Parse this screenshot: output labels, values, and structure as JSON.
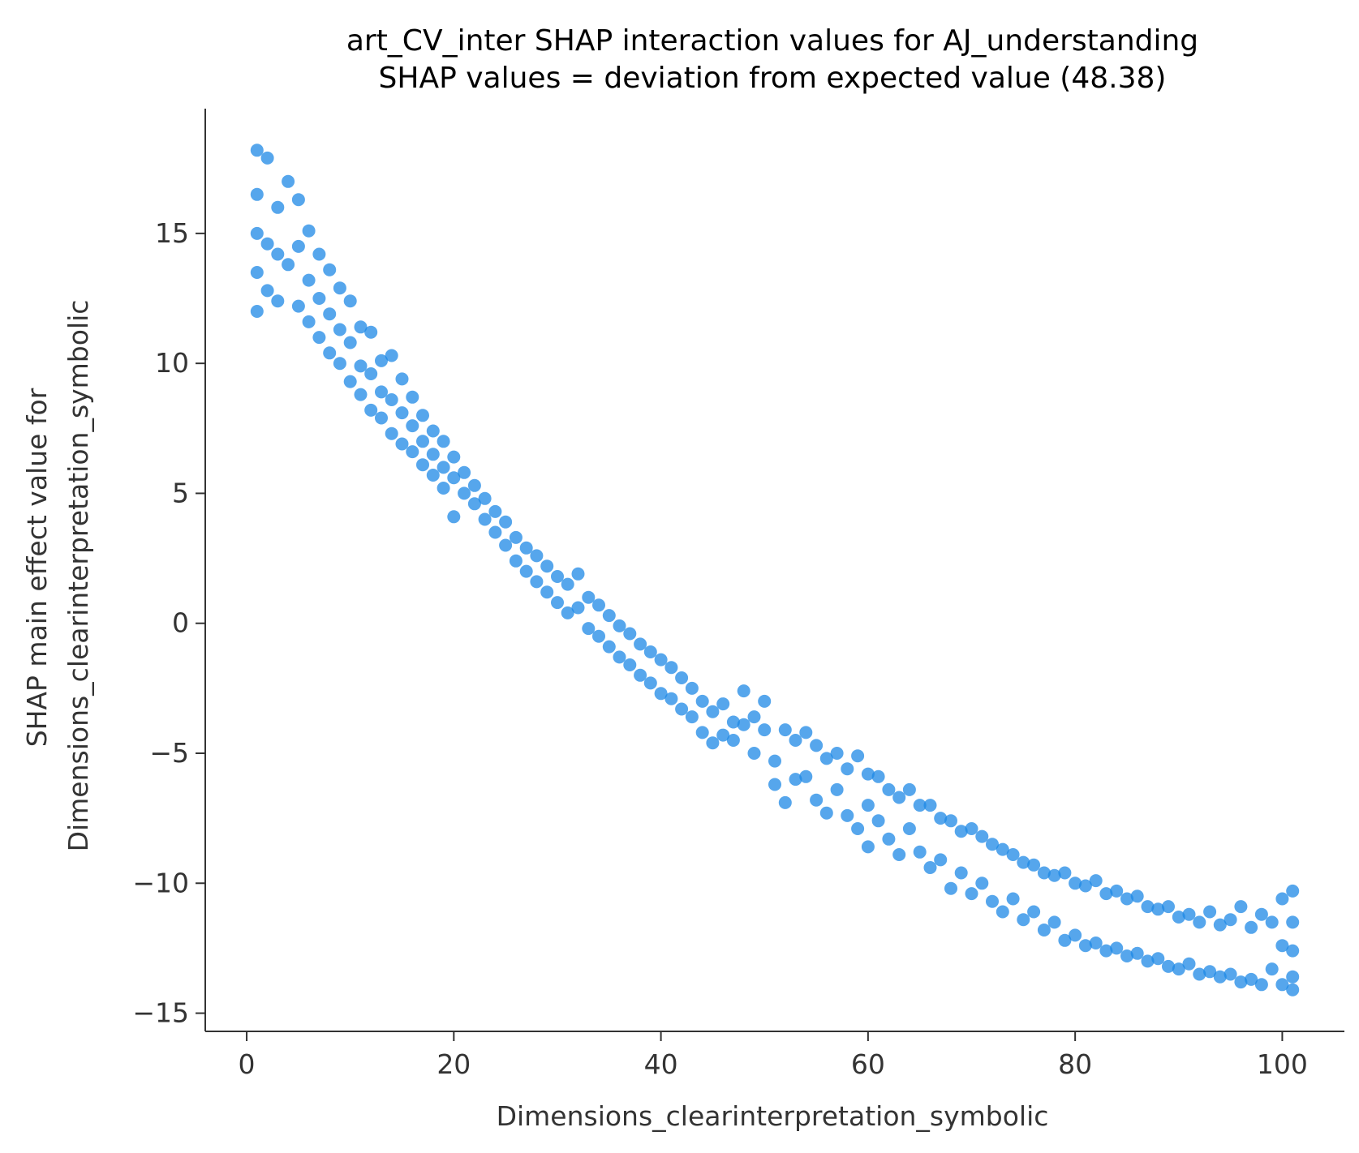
{
  "chart_data": {
    "type": "scatter",
    "title": "art_CV_inter SHAP interaction values for AJ_understanding",
    "subtitle": "SHAP values = deviation from expected value (48.38)",
    "xlabel": "Dimensions_clearinterpretation_symbolic",
    "ylabel_line1": "SHAP main effect value for",
    "ylabel_line2": "Dimensions_clearinterpretation_symbolic",
    "xlim": [
      -4,
      106
    ],
    "ylim": [
      -15.7,
      19.8
    ],
    "x_ticks": [
      0,
      20,
      40,
      60,
      80,
      100
    ],
    "x_tick_labels": [
      "0",
      "20",
      "40",
      "60",
      "80",
      "100"
    ],
    "y_ticks": [
      15,
      10,
      5,
      0,
      -5,
      -10,
      -15
    ],
    "y_tick_labels": [
      "15",
      "10",
      "5",
      "0",
      "−5",
      "−10",
      "−15"
    ],
    "grid": false,
    "marker_color": "#1E88E5",
    "series": [
      {
        "points": [
          [
            1,
            18.2
          ],
          [
            1,
            16.5
          ],
          [
            1,
            15.0
          ],
          [
            1,
            13.5
          ],
          [
            1,
            12.0
          ],
          [
            2,
            17.9
          ],
          [
            2,
            14.6
          ],
          [
            2,
            12.8
          ],
          [
            3,
            16.0
          ],
          [
            3,
            14.2
          ],
          [
            3,
            12.4
          ],
          [
            4,
            17.0
          ],
          [
            4,
            13.8
          ],
          [
            5,
            16.3
          ],
          [
            5,
            14.5
          ],
          [
            5,
            12.2
          ],
          [
            6,
            15.1
          ],
          [
            6,
            13.2
          ],
          [
            6,
            11.6
          ],
          [
            7,
            14.2
          ],
          [
            7,
            12.5
          ],
          [
            7,
            11.0
          ],
          [
            8,
            13.6
          ],
          [
            8,
            11.9
          ],
          [
            8,
            10.4
          ],
          [
            9,
            12.9
          ],
          [
            9,
            11.3
          ],
          [
            9,
            10.0
          ],
          [
            10,
            12.4
          ],
          [
            10,
            10.8
          ],
          [
            10,
            9.3
          ],
          [
            11,
            11.4
          ],
          [
            11,
            9.9
          ],
          [
            11,
            8.8
          ],
          [
            12,
            11.2
          ],
          [
            12,
            9.6
          ],
          [
            12,
            8.2
          ],
          [
            13,
            10.1
          ],
          [
            13,
            8.9
          ],
          [
            13,
            7.9
          ],
          [
            14,
            10.3
          ],
          [
            14,
            8.6
          ],
          [
            14,
            7.3
          ],
          [
            15,
            9.4
          ],
          [
            15,
            8.1
          ],
          [
            15,
            6.9
          ],
          [
            16,
            8.7
          ],
          [
            16,
            7.6
          ],
          [
            16,
            6.6
          ],
          [
            17,
            8.0
          ],
          [
            17,
            7.0
          ],
          [
            17,
            6.1
          ],
          [
            18,
            7.4
          ],
          [
            18,
            6.5
          ],
          [
            18,
            5.7
          ],
          [
            19,
            7.0
          ],
          [
            19,
            6.0
          ],
          [
            19,
            5.2
          ],
          [
            20,
            6.4
          ],
          [
            20,
            5.6
          ],
          [
            20,
            4.1
          ],
          [
            21,
            5.8
          ],
          [
            21,
            5.0
          ],
          [
            22,
            5.3
          ],
          [
            22,
            4.6
          ],
          [
            23,
            4.8
          ],
          [
            23,
            4.0
          ],
          [
            24,
            4.3
          ],
          [
            24,
            3.5
          ],
          [
            25,
            3.9
          ],
          [
            25,
            3.0
          ],
          [
            26,
            3.3
          ],
          [
            26,
            2.4
          ],
          [
            27,
            2.9
          ],
          [
            27,
            2.0
          ],
          [
            28,
            2.6
          ],
          [
            28,
            1.6
          ],
          [
            29,
            2.2
          ],
          [
            29,
            1.2
          ],
          [
            30,
            1.8
          ],
          [
            30,
            0.8
          ],
          [
            31,
            1.5
          ],
          [
            31,
            0.4
          ],
          [
            32,
            1.9
          ],
          [
            32,
            0.6
          ],
          [
            33,
            1.0
          ],
          [
            33,
            -0.2
          ],
          [
            34,
            0.7
          ],
          [
            34,
            -0.5
          ],
          [
            35,
            0.3
          ],
          [
            35,
            -0.9
          ],
          [
            36,
            -0.1
          ],
          [
            36,
            -1.3
          ],
          [
            37,
            -0.4
          ],
          [
            37,
            -1.6
          ],
          [
            38,
            -0.8
          ],
          [
            38,
            -2.0
          ],
          [
            39,
            -1.1
          ],
          [
            39,
            -2.3
          ],
          [
            40,
            -1.4
          ],
          [
            40,
            -2.7
          ],
          [
            41,
            -1.7
          ],
          [
            41,
            -2.9
          ],
          [
            42,
            -2.1
          ],
          [
            42,
            -3.3
          ],
          [
            43,
            -2.5
          ],
          [
            43,
            -3.6
          ],
          [
            44,
            -3.0
          ],
          [
            44,
            -4.2
          ],
          [
            45,
            -3.4
          ],
          [
            45,
            -4.6
          ],
          [
            46,
            -3.1
          ],
          [
            46,
            -4.3
          ],
          [
            47,
            -3.8
          ],
          [
            47,
            -4.5
          ],
          [
            48,
            -2.6
          ],
          [
            48,
            -3.9
          ],
          [
            49,
            -3.6
          ],
          [
            49,
            -5.0
          ],
          [
            50,
            -3.0
          ],
          [
            50,
            -4.1
          ],
          [
            51,
            -5.3
          ],
          [
            51,
            -6.2
          ],
          [
            52,
            -4.1
          ],
          [
            52,
            -6.9
          ],
          [
            53,
            -4.5
          ],
          [
            53,
            -6.0
          ],
          [
            54,
            -4.2
          ],
          [
            54,
            -5.9
          ],
          [
            55,
            -4.7
          ],
          [
            55,
            -6.8
          ],
          [
            56,
            -5.2
          ],
          [
            56,
            -7.3
          ],
          [
            57,
            -5.0
          ],
          [
            57,
            -6.4
          ],
          [
            58,
            -5.6
          ],
          [
            58,
            -7.4
          ],
          [
            59,
            -5.1
          ],
          [
            59,
            -7.9
          ],
          [
            60,
            -5.8
          ],
          [
            60,
            -7.0
          ],
          [
            60,
            -8.6
          ],
          [
            61,
            -5.9
          ],
          [
            61,
            -7.6
          ],
          [
            62,
            -6.4
          ],
          [
            62,
            -8.3
          ],
          [
            63,
            -6.7
          ],
          [
            63,
            -8.9
          ],
          [
            64,
            -6.4
          ],
          [
            64,
            -7.9
          ],
          [
            65,
            -7.0
          ],
          [
            65,
            -8.8
          ],
          [
            66,
            -7.0
          ],
          [
            66,
            -9.4
          ],
          [
            67,
            -7.5
          ],
          [
            67,
            -9.1
          ],
          [
            68,
            -7.6
          ],
          [
            68,
            -10.2
          ],
          [
            69,
            -8.0
          ],
          [
            69,
            -9.6
          ],
          [
            70,
            -7.9
          ],
          [
            70,
            -10.4
          ],
          [
            71,
            -8.2
          ],
          [
            71,
            -10.0
          ],
          [
            72,
            -8.5
          ],
          [
            72,
            -10.7
          ],
          [
            73,
            -8.7
          ],
          [
            73,
            -11.1
          ],
          [
            74,
            -8.9
          ],
          [
            74,
            -10.6
          ],
          [
            75,
            -9.2
          ],
          [
            75,
            -11.4
          ],
          [
            76,
            -9.3
          ],
          [
            76,
            -11.1
          ],
          [
            77,
            -9.6
          ],
          [
            77,
            -11.8
          ],
          [
            78,
            -9.7
          ],
          [
            78,
            -11.5
          ],
          [
            79,
            -9.6
          ],
          [
            79,
            -12.2
          ],
          [
            80,
            -10.0
          ],
          [
            80,
            -12.0
          ],
          [
            81,
            -10.1
          ],
          [
            81,
            -12.4
          ],
          [
            82,
            -9.9
          ],
          [
            82,
            -12.3
          ],
          [
            83,
            -10.4
          ],
          [
            83,
            -12.6
          ],
          [
            84,
            -10.3
          ],
          [
            84,
            -12.5
          ],
          [
            85,
            -10.6
          ],
          [
            85,
            -12.8
          ],
          [
            86,
            -10.5
          ],
          [
            86,
            -12.7
          ],
          [
            87,
            -10.9
          ],
          [
            87,
            -13.0
          ],
          [
            88,
            -11.0
          ],
          [
            88,
            -12.9
          ],
          [
            89,
            -10.9
          ],
          [
            89,
            -13.2
          ],
          [
            90,
            -11.3
          ],
          [
            90,
            -13.3
          ],
          [
            91,
            -11.2
          ],
          [
            91,
            -13.1
          ],
          [
            92,
            -11.5
          ],
          [
            92,
            -13.5
          ],
          [
            93,
            -11.1
          ],
          [
            93,
            -13.4
          ],
          [
            94,
            -11.6
          ],
          [
            94,
            -13.6
          ],
          [
            95,
            -11.4
          ],
          [
            95,
            -13.5
          ],
          [
            96,
            -10.9
          ],
          [
            96,
            -13.8
          ],
          [
            97,
            -11.7
          ],
          [
            97,
            -13.7
          ],
          [
            98,
            -11.2
          ],
          [
            98,
            -13.9
          ],
          [
            99,
            -11.5
          ],
          [
            99,
            -13.3
          ],
          [
            100,
            -10.6
          ],
          [
            100,
            -12.4
          ],
          [
            100,
            -13.9
          ],
          [
            101,
            -10.3
          ],
          [
            101,
            -11.5
          ],
          [
            101,
            -12.6
          ],
          [
            101,
            -13.6
          ],
          [
            101,
            -14.1
          ]
        ]
      }
    ]
  }
}
